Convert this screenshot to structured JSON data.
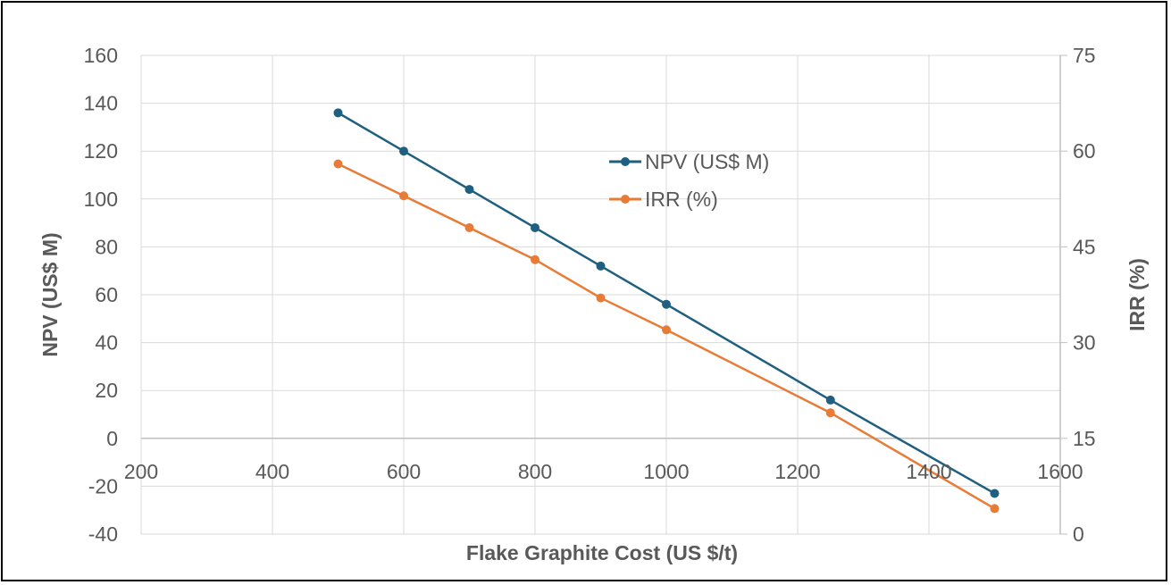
{
  "chart_data": {
    "type": "line",
    "xlabel": "Flake Graphite Cost (US $/t)",
    "ylabel": "NPV (US$ M)",
    "y2label": "IRR (%)",
    "xlim": [
      200,
      1600
    ],
    "ylim": [
      -40,
      160
    ],
    "y2lim": [
      0,
      75
    ],
    "x_ticks": [
      "200",
      "400",
      "600",
      "800",
      "1000",
      "1200",
      "1400",
      "1600"
    ],
    "y_ticks": [
      "-40",
      "-20",
      "0",
      "20",
      "40",
      "60",
      "80",
      "100",
      "120",
      "140",
      "160"
    ],
    "y2_ticks": [
      "0",
      "15",
      "30",
      "45",
      "60",
      "75"
    ],
    "grid": true,
    "legend_position": "top-center",
    "series": [
      {
        "name": "NPV (US$ M)",
        "axis": "left",
        "color": "#1f5f7f",
        "x": [
          500,
          600,
          700,
          800,
          900,
          1000,
          1250,
          1500
        ],
        "values": [
          136,
          120,
          104,
          88,
          72,
          56,
          16,
          -23
        ]
      },
      {
        "name": "IRR (%)",
        "axis": "right",
        "color": "#e87b36",
        "x": [
          500,
          600,
          700,
          800,
          900,
          1000,
          1250,
          1500
        ],
        "values": [
          58,
          53,
          48,
          43,
          37,
          32,
          19,
          4
        ]
      }
    ]
  }
}
